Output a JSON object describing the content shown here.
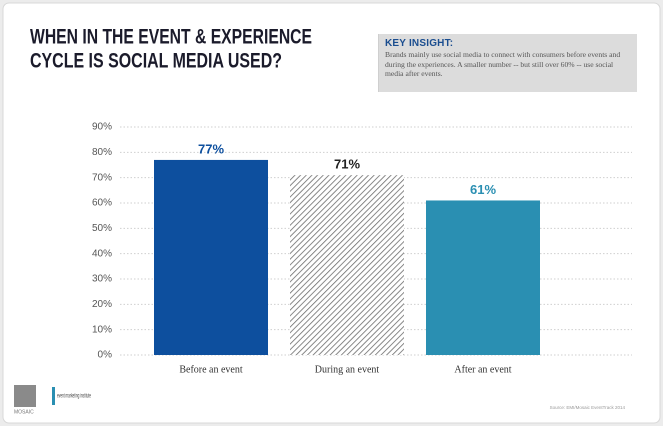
{
  "chart_data": {
    "type": "bar",
    "title": [
      "WHEN IN THE EVENT & EXPERIENCE",
      "CYCLE IS SOCIAL MEDIA USED?"
    ],
    "insight_heading": "KEY INSIGHT:",
    "insight_text": "Brands mainly use social media to connect with consumers before events and during the experiences. A smaller number -- but still over 60% -- use social media after events.",
    "categories": [
      "Before an event",
      "During an event",
      "After an event"
    ],
    "values": [
      77,
      71,
      61
    ],
    "value_labels": [
      "77%",
      "71%",
      "61%"
    ],
    "colors": [
      "#0d4f9e",
      "#6b6b6b",
      "#2a8fb2"
    ],
    "hatch": [
      false,
      true,
      false
    ],
    "label_colors": [
      "#0d4f9e",
      "#222222",
      "#2a8fb2"
    ],
    "ylim": [
      0,
      90
    ],
    "yticks": [
      {
        "value": 0,
        "label": "0%"
      },
      {
        "value": 10,
        "label": "10%"
      },
      {
        "value": 20,
        "label": "20%"
      },
      {
        "value": 30,
        "label": "30%"
      },
      {
        "value": 40,
        "label": "40%"
      },
      {
        "value": 50,
        "label": "50%"
      },
      {
        "value": 60,
        "label": "60%"
      },
      {
        "value": 70,
        "label": "70%"
      },
      {
        "value": 80,
        "label": "80%"
      },
      {
        "value": 90,
        "label": "90%"
      }
    ],
    "grid": true,
    "logos": [
      "MOSAIC",
      "event marketing institute"
    ],
    "source": "Source: EMI/Mosaic EventTrack 2014"
  }
}
